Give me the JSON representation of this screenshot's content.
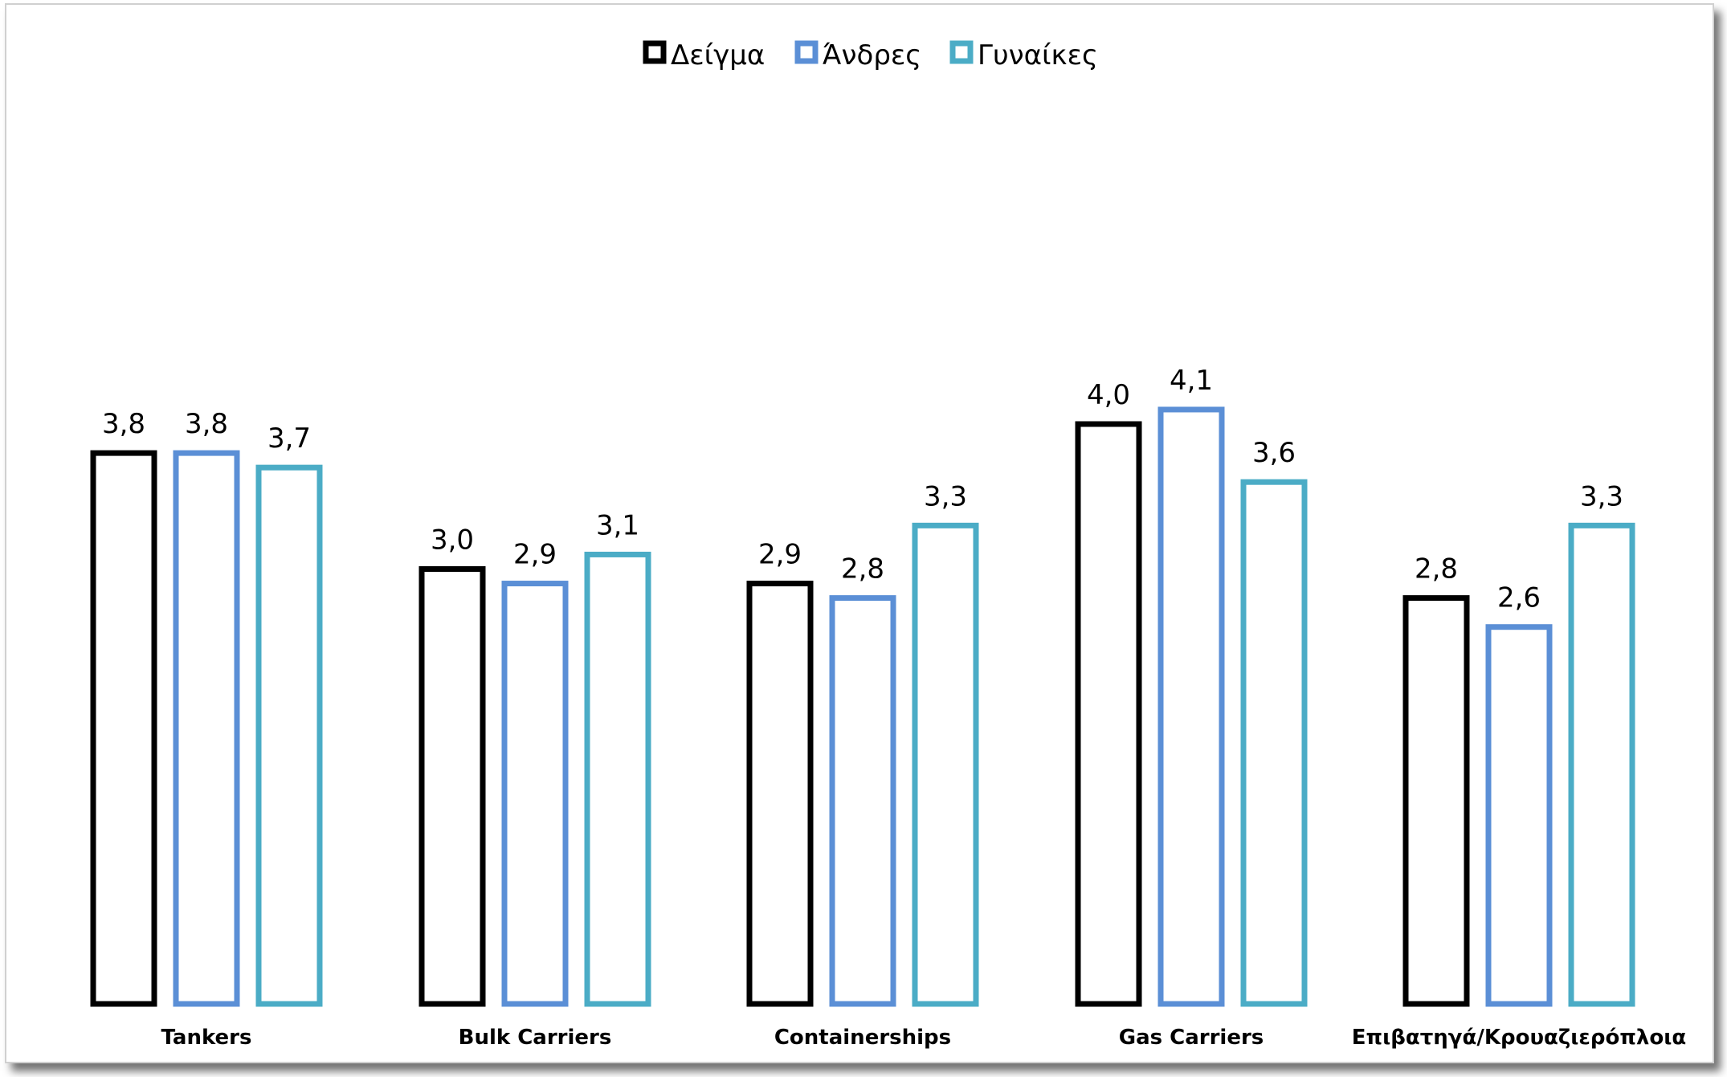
{
  "chart_data": {
    "type": "bar",
    "categories": [
      "Tankers",
      "Bulk Carriers",
      "Containerships",
      "Gas Carriers",
      "Επιβατηγά/Κρουαζιερόπλοια"
    ],
    "series": [
      {
        "name": "Δείγμα",
        "color": "#000000",
        "values": [
          3.8,
          3.0,
          2.9,
          4.0,
          2.8
        ],
        "labels": [
          "3,8",
          "3,0",
          "2,9",
          "4,0",
          "2,8"
        ]
      },
      {
        "name": "Άνδρες",
        "color": "#5b8fd6",
        "values": [
          3.8,
          2.9,
          2.8,
          4.1,
          2.6
        ],
        "labels": [
          "3,8",
          "2,9",
          "2,8",
          "4,1",
          "2,6"
        ]
      },
      {
        "name": "Γυναίκες",
        "color": "#4bacc6",
        "values": [
          3.7,
          3.1,
          3.3,
          3.6,
          3.3
        ],
        "labels": [
          "3,7",
          "3,1",
          "3,3",
          "3,6",
          "3,3"
        ]
      }
    ],
    "ylim": [
      0,
      4.5
    ],
    "bar_style": "outline",
    "legend_position": "top-center",
    "grid": false,
    "title": "",
    "xlabel": "",
    "ylabel": ""
  }
}
